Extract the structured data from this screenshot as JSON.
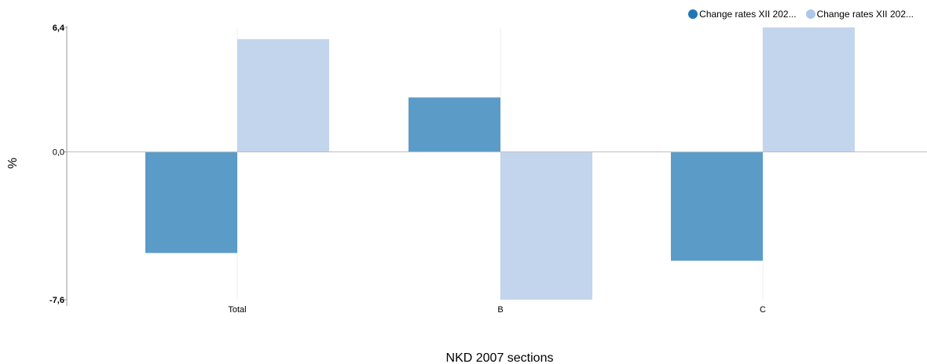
{
  "chart_data": {
    "type": "bar",
    "categories": [
      "Total",
      "B",
      "C"
    ],
    "series": [
      {
        "name": "Change rates XII 202...",
        "values": [
          -5.2,
          2.8,
          -5.6
        ],
        "color": "#5b9bc8"
      },
      {
        "name": "Change rates XII 202...",
        "values": [
          5.8,
          -7.6,
          6.4
        ],
        "color": "#c3d5ed"
      }
    ],
    "xlabel": "NKD 2007 sections",
    "ylabel": "%",
    "ylim": [
      -7.6,
      6.4
    ],
    "yticks": [
      "6,4",
      "0,0",
      "-7,6"
    ],
    "legend_position": "top-right",
    "grid": "vertical",
    "legend_swatch_colors": [
      "#1f77b4",
      "#aec7e8"
    ]
  }
}
